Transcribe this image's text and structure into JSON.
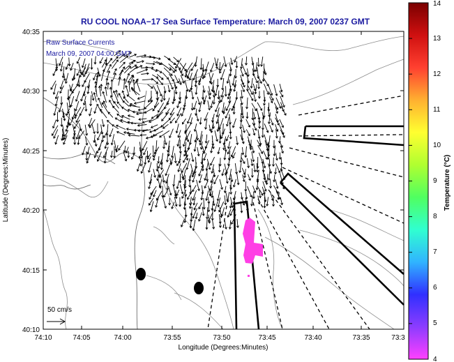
{
  "title": "RU COOL  NOAA−17  Sea Surface Temperature:  March 09, 2007 0237 GMT",
  "inset_line1": "Raw Surface Currents",
  "inset_line2": "March 09, 2007 04:00 GMT",
  "scale_label": "50 cm/s",
  "x_axis": {
    "label": "Longitude (Degrees:Minutes)",
    "ticks": [
      "74:10",
      "74:05",
      "74:00",
      "73:55",
      "73:50",
      "73:45",
      "73:40",
      "73:35",
      "73:3"
    ]
  },
  "y_axis": {
    "label": "Latitude (Degrees:Minutes)",
    "ticks": [
      "40:35",
      "40:30",
      "40:25",
      "40:20",
      "40:15",
      "40:10"
    ]
  },
  "colorbar": {
    "label": "Temperature (°C)",
    "ticks": [
      "14",
      "13",
      "12",
      "11",
      "10",
      "9",
      "8",
      "7",
      "6",
      "5",
      "4"
    ],
    "range": [
      4,
      14
    ],
    "colors": [
      "#ff40ff",
      "#8c3cff",
      "#3030ff",
      "#30b4ff",
      "#30ffd0",
      "#50ff60",
      "#b0ff30",
      "#ffff30",
      "#ffb030",
      "#ff4030",
      "#d01010",
      "#7a0000"
    ]
  },
  "sst_patch_color": "#ff3fe5"
}
